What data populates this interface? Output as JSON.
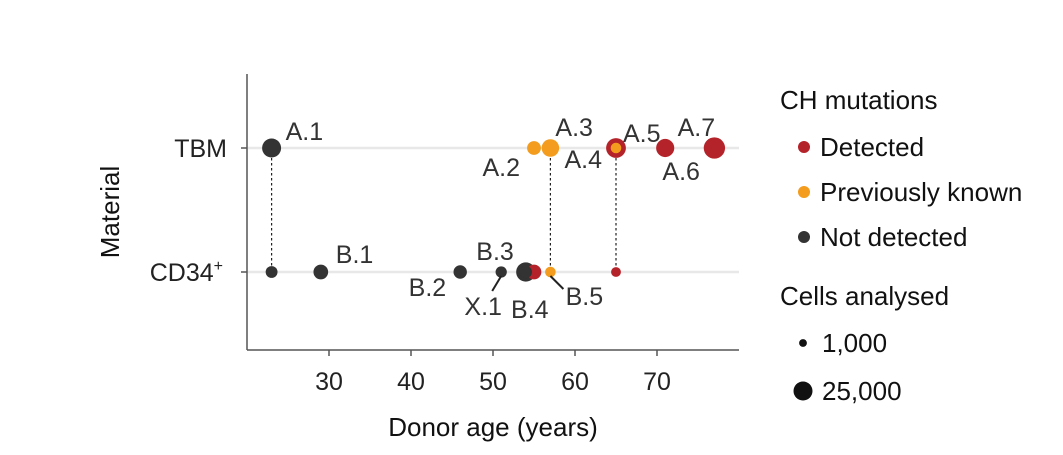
{
  "chart_data": {
    "type": "scatter",
    "title": "",
    "xlabel": "Donor age (years)",
    "ylabel": "Material",
    "xlim": [
      20,
      80
    ],
    "x_ticks": [
      30,
      40,
      50,
      60,
      70
    ],
    "y_categories": [
      {
        "key": "TBM",
        "label": "TBM",
        "superscript": ""
      },
      {
        "key": "CD34",
        "label": "CD34",
        "superscript": "+"
      }
    ],
    "legend_color_title": "CH mutations",
    "legend_size_title": "Cells analysed",
    "categories": [
      {
        "key": "detected",
        "label": "Detected",
        "color": "#b5232a"
      },
      {
        "key": "known",
        "label": "Previously known",
        "color": "#f39c1e"
      },
      {
        "key": "notdetected",
        "label": "Not detected",
        "color": "#333333"
      }
    ],
    "size_legend": [
      {
        "label": "1,000",
        "cells": 1000
      },
      {
        "label": "25,000",
        "cells": 25000
      }
    ],
    "points": [
      {
        "label": "A.1",
        "material": "TBM",
        "age": 23,
        "status": "notdetected",
        "cells": 25000
      },
      {
        "label": "A.2",
        "material": "TBM",
        "age": 55,
        "status": "known",
        "cells": 10000
      },
      {
        "label": "A.3",
        "material": "TBM",
        "age": 57,
        "status": "known",
        "cells": 20000
      },
      {
        "label": "A.4",
        "material": "TBM",
        "age": 65,
        "status": "detected",
        "cells": 28000
      },
      {
        "label": "A.5",
        "material": "TBM",
        "age": 65,
        "status": "known",
        "cells": 4000
      },
      {
        "label": "A.6",
        "material": "TBM",
        "age": 71,
        "status": "detected",
        "cells": 22000
      },
      {
        "label": "A.7",
        "material": "TBM",
        "age": 77,
        "status": "detected",
        "cells": 34000
      },
      {
        "label": "",
        "material": "CD34",
        "age": 23,
        "status": "notdetected",
        "cells": 6000
      },
      {
        "label": "B.1",
        "material": "CD34",
        "age": 29,
        "status": "notdetected",
        "cells": 12000
      },
      {
        "label": "B.2",
        "material": "CD34",
        "age": 46,
        "status": "notdetected",
        "cells": 9000
      },
      {
        "label": "X.1",
        "material": "CD34",
        "age": 51,
        "status": "notdetected",
        "cells": 5000
      },
      {
        "label": "B.3",
        "material": "CD34",
        "age": 54,
        "status": "notdetected",
        "cells": 26000
      },
      {
        "label": "B.4",
        "material": "CD34",
        "age": 54,
        "status": "notdetected",
        "cells": 7000
      },
      {
        "label": "",
        "material": "CD34",
        "age": 55,
        "status": "detected",
        "cells": 12000
      },
      {
        "label": "B.5",
        "material": "CD34",
        "age": 57,
        "status": "known",
        "cells": 4000
      },
      {
        "label": "",
        "material": "CD34",
        "age": 65,
        "status": "detected",
        "cells": 3000
      }
    ],
    "connectors": [
      23,
      57,
      65
    ],
    "grid": false,
    "legend_position": "right"
  }
}
